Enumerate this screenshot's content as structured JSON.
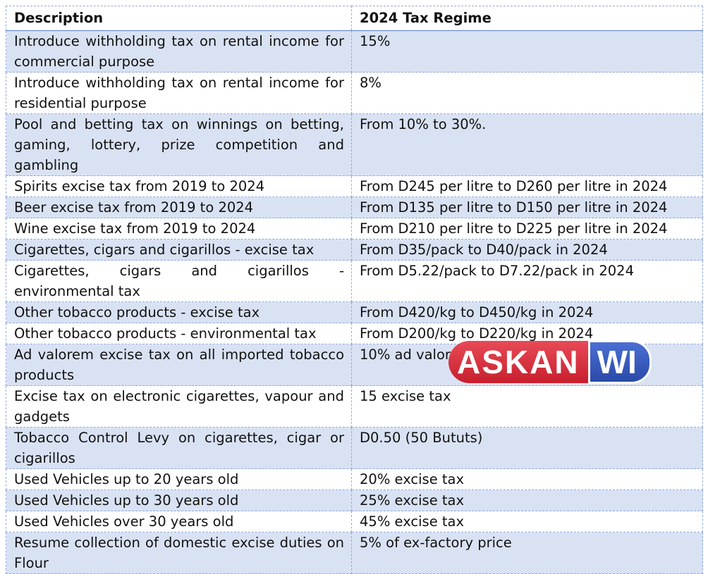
{
  "table": {
    "headers": [
      "Description",
      "2024 Tax Regime"
    ],
    "rows": [
      {
        "description": "Introduce withholding tax on rental income for commercial purpose",
        "regime": "15%"
      },
      {
        "description": "Introduce withholding tax on rental income for residential purpose",
        "regime": "8%"
      },
      {
        "description": "Pool and betting tax on winnings on betting, gaming, lottery, prize competition and gambling",
        "regime": "From 10% to 30%."
      },
      {
        "description": "Spirits excise tax from 2019 to 2024",
        "regime": "From D245 per litre to D260 per litre in 2024"
      },
      {
        "description": "Beer excise tax from 2019 to 2024",
        "regime": "From D135 per litre to D150 per litre in 2024"
      },
      {
        "description": "Wine excise tax from 2019 to 2024",
        "regime": "From D210 per litre to D225 per litre in 2024"
      },
      {
        "description": "Cigarettes, cigars and cigarillos - excise tax",
        "regime": "From D35/pack to D40/pack in 2024"
      },
      {
        "description": "Cigarettes, cigars and cigarillos - environmental tax",
        "regime": "From D5.22/pack to D7.22/pack in 2024"
      },
      {
        "description": "Other tobacco products - excise tax",
        "regime": "From D420/kg to D450/kg in 2024"
      },
      {
        "description": "Other tobacco products - environmental tax",
        "regime": "From D200/kg to D220/kg in 2024"
      },
      {
        "description": "Ad valorem excise tax on all imported tobacco products",
        "regime": "10% ad valorem"
      },
      {
        "description": "Excise tax on electronic cigarettes, vapour and gadgets",
        "regime": "15 excise tax"
      },
      {
        "description": "Tobacco Control Levy on cigarettes, cigar or cigarillos",
        "regime": "D0.50 (50 Bututs)"
      },
      {
        "description": "Used Vehicles up to 20 years old",
        "regime": "20% excise tax"
      },
      {
        "description": "Used Vehicles up to 30 years old",
        "regime": "25% excise tax"
      },
      {
        "description": "Used Vehicles over 30 years old",
        "regime": "45% excise tax"
      },
      {
        "description": "Resume collection of domestic excise duties on Flour",
        "regime": "5% of ex-factory price"
      }
    ]
  },
  "watermark": {
    "part1": "ASKAN",
    "part2": "WI"
  }
}
